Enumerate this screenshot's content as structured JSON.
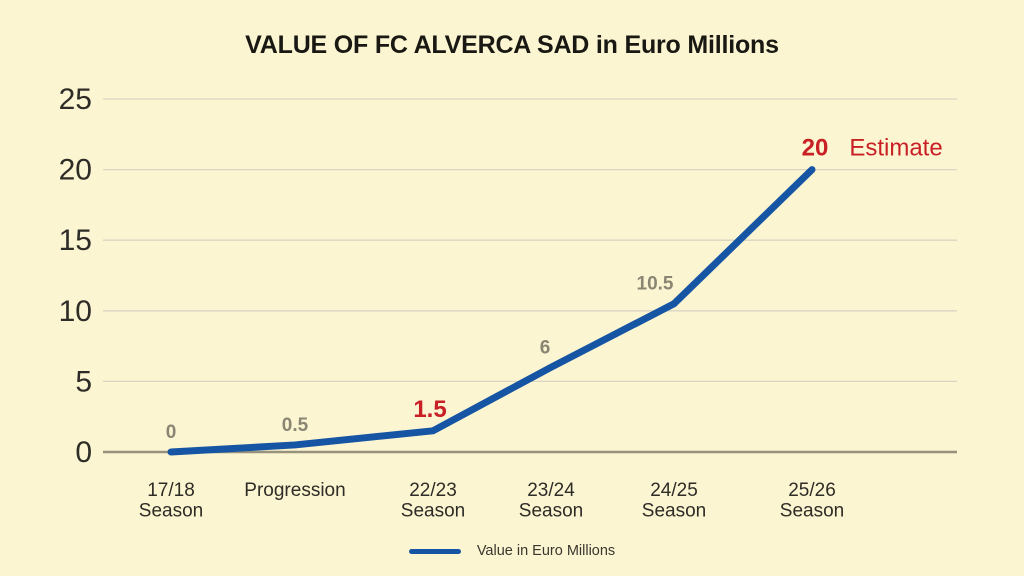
{
  "title": "VALUE OF FC ALVERCA SAD in Euro Millions",
  "chart_data": {
    "type": "line",
    "title": "VALUE OF FC ALVERCA SAD in Euro Millions",
    "categories": [
      "17/18 Season",
      "Progression",
      "22/23 Season",
      "23/24 Season",
      "24/25 Season",
      "25/26 Season"
    ],
    "category_lines": [
      [
        "17/18",
        "Season"
      ],
      [
        "Progression"
      ],
      [
        "22/23",
        "Season"
      ],
      [
        "23/24",
        "Season"
      ],
      [
        "24/25",
        "Season"
      ],
      [
        "25/26",
        "Season"
      ]
    ],
    "values": [
      0,
      0.5,
      1.5,
      6,
      10.5,
      20
    ],
    "point_labels": [
      {
        "text": "0",
        "emphasis": "gray"
      },
      {
        "text": "0.5",
        "emphasis": "gray"
      },
      {
        "text": "1.5",
        "emphasis": "red"
      },
      {
        "text": "6",
        "emphasis": "gray"
      },
      {
        "text": "10.5",
        "emphasis": "gray"
      },
      {
        "text": "20",
        "emphasis": "red"
      }
    ],
    "annotation": {
      "text": "Estimate",
      "attached_to_index": 5,
      "color": "red"
    },
    "y_ticks": [
      0,
      5,
      10,
      15,
      20,
      25
    ],
    "ylim": [
      0,
      25
    ],
    "xlabel": "",
    "ylabel": "",
    "grid": true,
    "legend_position": "bottom",
    "series": [
      {
        "name": "Value in Euro Millions",
        "values": [
          0,
          0.5,
          1.5,
          6,
          10.5,
          20
        ]
      }
    ]
  },
  "legend": {
    "label": "Value in Euro Millions"
  },
  "colors": {
    "background": "#FBF5D2",
    "line_blue": "#1655A4",
    "accent_red": "#C92026",
    "gray_label": "#8A8673",
    "grid_line": "#D9D5C2",
    "axis_line": "#97927D",
    "tick_text": "#2E2C26",
    "legend_text": "#3A382E"
  }
}
